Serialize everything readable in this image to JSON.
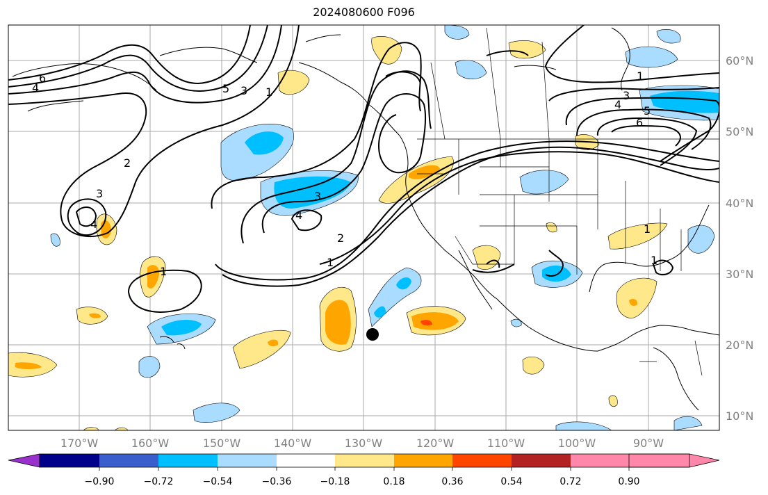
{
  "title": "2024080600 F096",
  "map": {
    "lat_labels": [
      "60°N",
      "50°N",
      "40°N",
      "30°N",
      "20°N",
      "10°N"
    ],
    "lon_labels": [
      "170°W",
      "160°W",
      "150°W",
      "140°W",
      "130°W",
      "120°W",
      "110°W",
      "100°W",
      "90°W"
    ],
    "contour_labels": [
      "6",
      "4",
      "5",
      "3",
      "1",
      "2",
      "3",
      "4",
      "3",
      "4",
      "2",
      "1",
      "1",
      "1",
      "3",
      "4",
      "5",
      "6",
      "1",
      "2",
      "1"
    ],
    "marker": "station-dot"
  },
  "colorbar": {
    "ticks": [
      "−0.90",
      "−0.72",
      "−0.54",
      "−0.36",
      "−0.18",
      "0.18",
      "0.36",
      "0.54",
      "0.72",
      "0.90"
    ],
    "colors": [
      "#9932cc",
      "#00008b",
      "#3a5fcd",
      "#00bfff",
      "#aadcff",
      "#ffffff",
      "#ffe88a",
      "#ffa500",
      "#ff4500",
      "#b22222",
      "#ff88aa"
    ]
  },
  "colors": {
    "neg_light": "#aadcff",
    "neg_mid": "#00bfff",
    "pos_light": "#ffe88a",
    "pos_mid": "#ffa500",
    "pos_strong": "#ff4500"
  }
}
